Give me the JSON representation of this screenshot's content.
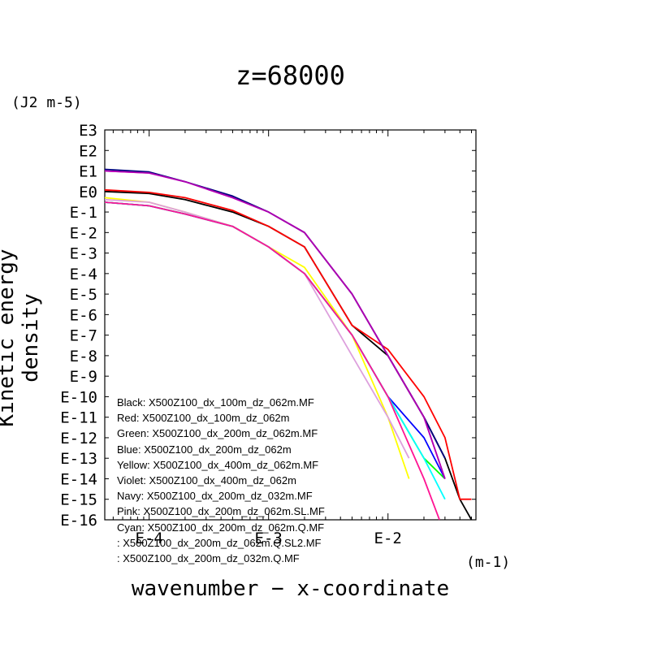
{
  "chart_data": {
    "type": "line",
    "title": "z=68000",
    "xlabel": "wavenumber − x-coordinate",
    "ylabel": "Kinetic energy density",
    "x_unit": "(m-1)",
    "y_unit": "(J2 m-5)",
    "x_scale": "log",
    "y_scale": "log",
    "xlim": [
      4.25e-05,
      0.0545
    ],
    "ylim": [
      1e-16,
      1000
    ],
    "x_tick_labels": [
      "E-4",
      "E-3",
      "E-2"
    ],
    "y_tick_labels": [
      "E3",
      "E2",
      "E1",
      "E0",
      "E-1",
      "E-2",
      "E-3",
      "E-4",
      "E-5",
      "E-6",
      "E-7",
      "E-8",
      "E-9",
      "E-10",
      "E-11",
      "E-12",
      "E-13",
      "E-14",
      "E-15",
      "E-16"
    ],
    "legend": [
      "Black: X500Z100_dx_100m_dz_062m.MF",
      "Red: X500Z100_dx_100m_dz_062m",
      "Green: X500Z100_dx_200m_dz_062m.MF",
      "Blue: X500Z100_dx_200m_dz_062m",
      "Yellow: X500Z100_dx_400m_dz_062m.MF",
      "Violet: X500Z100_dx_400m_dz_062m",
      "Navy: X500Z100_dx_200m_dz_032m.MF",
      "Pink: X500Z100_dx_200m_dz_062m.SL.MF",
      "Cyan: X500Z100_dx_200m_dz_062m.Q.MF",
      ": X500Z100_dx_200m_dz_062m.Q.SL2.MF",
      ": X500Z100_dx_200m_dz_032m.Q.MF"
    ],
    "legend_placement": "bottom-left",
    "series": [
      {
        "name": "Black",
        "color": "#000000",
        "x": [
          4.25e-05,
          0.0001,
          0.0002,
          0.0005,
          0.001,
          0.002,
          0.005,
          0.01,
          0.02,
          0.03,
          0.04,
          0.05
        ],
        "y": [
          1,
          0.8,
          0.4,
          0.1,
          0.02,
          0.002,
          3e-07,
          1e-08,
          1e-11,
          1e-13,
          1e-15,
          1e-16
        ]
      },
      {
        "name": "Red",
        "color": "#ff0000",
        "x": [
          4.25e-05,
          0.0001,
          0.0002,
          0.0005,
          0.001,
          0.002,
          0.005,
          0.01,
          0.02,
          0.03,
          0.04,
          0.05
        ],
        "y": [
          1.2,
          0.9,
          0.5,
          0.12,
          0.02,
          0.002,
          3e-07,
          2e-08,
          1e-10,
          1e-12,
          1e-15,
          1e-15
        ]
      },
      {
        "name": "Green",
        "color": "#00ff00",
        "x": [
          4.25e-05,
          0.0001,
          0.0002,
          0.0005,
          0.001,
          0.002,
          0.005,
          0.01,
          0.02,
          0.03
        ],
        "y": [
          0.3,
          0.2,
          0.08,
          0.02,
          0.002,
          0.0001,
          1e-07,
          1e-10,
          1e-13,
          1e-14
        ]
      },
      {
        "name": "Blue",
        "color": "#0000ff",
        "x": [
          4.25e-05,
          0.0001,
          0.0002,
          0.0005,
          0.001,
          0.002,
          0.005,
          0.01,
          0.02,
          0.03
        ],
        "y": [
          0.3,
          0.2,
          0.08,
          0.02,
          0.002,
          0.0001,
          1e-07,
          1e-10,
          1e-12,
          1e-14
        ]
      },
      {
        "name": "Yellow",
        "color": "#ffff00",
        "x": [
          4.25e-05,
          0.0001,
          0.0002,
          0.0005,
          0.001,
          0.002,
          0.005,
          0.01,
          0.015
        ],
        "y": [
          0.5,
          0.3,
          0.1,
          0.02,
          0.002,
          0.0002,
          1e-07,
          1e-11,
          1e-14
        ]
      },
      {
        "name": "Violet",
        "color": "#ff00ff",
        "x": [
          4.25e-05,
          0.0001,
          0.0002,
          0.0005,
          0.001,
          0.002,
          0.005,
          0.01,
          0.02,
          0.03
        ],
        "y": [
          10,
          8,
          3,
          0.5,
          0.1,
          0.01,
          1e-05,
          1e-08,
          1e-11,
          1e-14
        ]
      },
      {
        "name": "Navy",
        "color": "#000080",
        "x": [
          4.25e-05,
          0.0001,
          0.0002,
          0.0005,
          0.001,
          0.002,
          0.005,
          0.01,
          0.02,
          0.03
        ],
        "y": [
          12,
          9,
          3,
          0.6,
          0.1,
          0.01,
          1e-05,
          1e-08,
          1e-11,
          1e-13
        ]
      },
      {
        "name": "Pink",
        "color": "#dda0dd",
        "x": [
          4.25e-05,
          0.0001,
          0.0002,
          0.0005,
          0.001,
          0.002,
          0.005,
          0.01,
          0.015
        ],
        "y": [
          0.4,
          0.3,
          0.1,
          0.02,
          0.002,
          0.0001,
          1e-08,
          1e-11,
          1e-13
        ]
      },
      {
        "name": "Cyan",
        "color": "#00ffff",
        "x": [
          4.25e-05,
          0.0001,
          0.0002,
          0.0005,
          0.001,
          0.002,
          0.005,
          0.01,
          0.02,
          0.03
        ],
        "y": [
          0.3,
          0.2,
          0.08,
          0.02,
          0.002,
          0.0001,
          1e-07,
          1e-10,
          1e-13,
          1e-15
        ]
      },
      {
        "color": "#ff1493",
        "x": [
          4.25e-05,
          0.0001,
          0.0002,
          0.0005,
          0.001,
          0.002,
          0.005,
          0.01,
          0.02,
          0.027
        ],
        "y": [
          0.3,
          0.2,
          0.08,
          0.02,
          0.002,
          0.0001,
          1e-07,
          1e-10,
          1e-14,
          1e-16
        ]
      },
      {
        "color": "#b000b0",
        "x": [
          4.25e-05,
          0.0001,
          0.0002,
          0.0005,
          0.001,
          0.002,
          0.005,
          0.01,
          0.02,
          0.03
        ],
        "y": [
          10,
          8,
          3,
          0.5,
          0.1,
          0.01,
          1e-05,
          1e-08,
          1e-11,
          1e-14
        ]
      }
    ]
  }
}
